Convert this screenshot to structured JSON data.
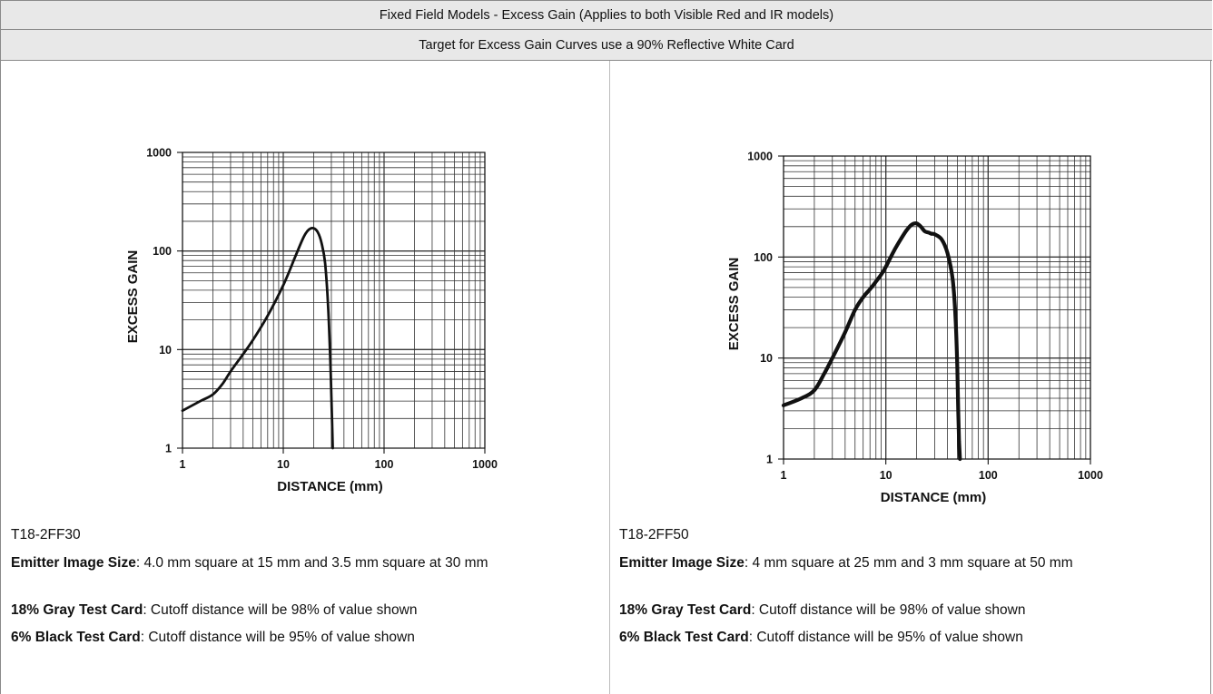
{
  "header": {
    "title": "Fixed Field Models - Excess Gain (Applies to both Visible Red and IR models)",
    "subtitle": "Target for Excess Gain Curves use a 90% Reflective White Card"
  },
  "chart_data": [
    {
      "type": "line",
      "xscale": "log",
      "yscale": "log",
      "xlabel": "DISTANCE (mm)",
      "ylabel": "EXCESS GAIN",
      "xlim": [
        1,
        1000
      ],
      "ylim": [
        1,
        1000
      ],
      "xticks": [
        "1",
        "10",
        "100",
        "1000"
      ],
      "yticks": [
        "1",
        "10",
        "100",
        "1000"
      ],
      "grid": true,
      "series": [
        {
          "x": [
            1,
            1.5,
            2,
            2.5,
            3,
            4,
            5,
            7,
            10,
            13,
            16,
            18,
            20,
            22,
            24,
            26,
            28,
            29.5,
            30.5,
            31
          ],
          "y": [
            2.4,
            3.0,
            3.5,
            4.5,
            6,
            9,
            12.5,
            22,
            45,
            85,
            140,
            165,
            170,
            155,
            120,
            75,
            25,
            6,
            1.8,
            1
          ]
        }
      ]
    },
    {
      "type": "line",
      "xscale": "log",
      "yscale": "log",
      "xlabel": "DISTANCE (mm)",
      "ylabel": "EXCESS GAIN",
      "xlim": [
        1,
        1000
      ],
      "ylim": [
        1,
        1000
      ],
      "xticks": [
        "1",
        "10",
        "100",
        "1000"
      ],
      "yticks": [
        "1",
        "10",
        "100",
        "1000"
      ],
      "grid": true,
      "series": [
        {
          "x": [
            1,
            1.5,
            2,
            2.5,
            3,
            4,
            5,
            6,
            7,
            8,
            9,
            10,
            12,
            14,
            16,
            18,
            20,
            22,
            24,
            26,
            28,
            30,
            35,
            40,
            45,
            48,
            50,
            51,
            52,
            53
          ],
          "y": [
            3.4,
            4.0,
            4.8,
            7,
            10,
            18,
            30,
            40,
            48,
            57,
            67,
            80,
            115,
            150,
            185,
            210,
            215,
            200,
            180,
            175,
            170,
            168,
            150,
            110,
            60,
            25,
            8,
            3,
            1.5,
            1
          ]
        }
      ]
    }
  ],
  "models": [
    {
      "name": "T18-2FF30",
      "rows": [
        {
          "label": "Emitter Image Size",
          "text": ": 4.0 mm square at 15 mm and 3.5 mm square at 30 mm"
        },
        {
          "label": "18% Gray Test Card",
          "text": ": Cutoff distance will be 98% of value shown"
        },
        {
          "label": "6% Black Test Card",
          "text": ": Cutoff distance will be 95% of value shown"
        }
      ]
    },
    {
      "name": "T18-2FF50",
      "rows": [
        {
          "label": "Emitter Image Size",
          "text": ": 4 mm square at 25 mm and 3 mm square at 50 mm"
        },
        {
          "label": "18% Gray Test Card",
          "text": ": Cutoff distance will be 98% of value shown"
        },
        {
          "label": "6% Black Test Card",
          "text": ": Cutoff distance will be 95% of value shown"
        }
      ]
    }
  ]
}
